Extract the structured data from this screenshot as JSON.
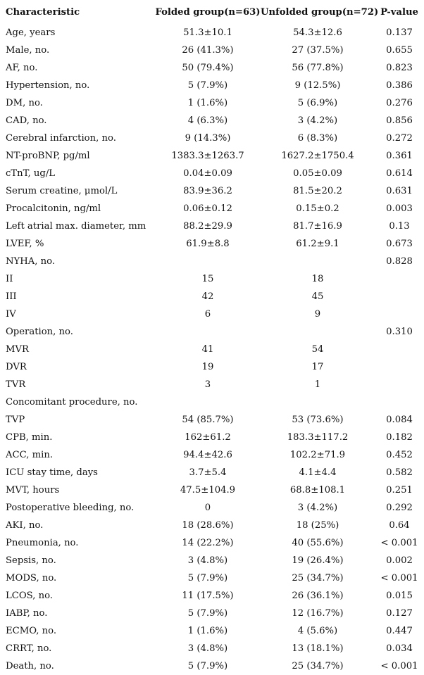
{
  "table": {
    "headers": [
      "Characteristic",
      "Folded group(n=63)",
      "Unfolded group(n=72)",
      "P-value"
    ],
    "rows": [
      [
        "Age, years",
        "51.3±10.1",
        "54.3±12.6",
        "0.137"
      ],
      [
        "Male, no.",
        "26 (41.3%)",
        "27 (37.5%)",
        "0.655"
      ],
      [
        "AF, no.",
        "50 (79.4%)",
        "56 (77.8%)",
        "0.823"
      ],
      [
        "Hypertension, no.",
        "5 (7.9%)",
        "9 (12.5%)",
        "0.386"
      ],
      [
        "DM, no.",
        "1 (1.6%)",
        "5 (6.9%)",
        "0.276"
      ],
      [
        "CAD, no.",
        "4 (6.3%)",
        "3 (4.2%)",
        "0.856"
      ],
      [
        "Cerebral infarction, no.",
        "9 (14.3%)",
        "6 (8.3%)",
        "0.272"
      ],
      [
        "NT-proBNP, pg/ml",
        "1383.3±1263.7",
        "1627.2±1750.4",
        "0.361"
      ],
      [
        "cTnT, ug/L",
        "0.04±0.09",
        "0.05±0.09",
        "0.614"
      ],
      [
        "Serum creatine, μmol/L",
        "83.9±36.2",
        "81.5±20.2",
        "0.631"
      ],
      [
        "Procalcitonin, ng/ml",
        "0.06±0.12",
        "0.15±0.2",
        "0.003"
      ],
      [
        "Left atrial max. diameter, mm",
        "88.2±29.9",
        "81.7±16.9",
        "0.13"
      ],
      [
        "LVEF, %",
        "61.9±8.8",
        "61.2±9.1",
        "0.673"
      ],
      [
        "NYHA, no.",
        "",
        "",
        "0.828"
      ],
      [
        "II",
        "15",
        "18",
        ""
      ],
      [
        "III",
        "42",
        "45",
        ""
      ],
      [
        "IV",
        "6",
        "9",
        ""
      ],
      [
        "Operation, no.",
        "",
        "",
        "0.310"
      ],
      [
        "MVR",
        "41",
        "54",
        ""
      ],
      [
        "DVR",
        "19",
        "17",
        ""
      ],
      [
        "TVR",
        "3",
        "1",
        ""
      ],
      [
        "Concomitant procedure, no.",
        "",
        "",
        ""
      ],
      [
        "TVP",
        "54 (85.7%)",
        "53 (73.6%)",
        "0.084"
      ],
      [
        "CPB, min.",
        "162±61.2",
        "183.3±117.2",
        "0.182"
      ],
      [
        "ACC, min.",
        "94.4±42.6",
        "102.2±71.9",
        "0.452"
      ],
      [
        "ICU stay time, days",
        "3.7±5.4",
        "4.1±4.4",
        "0.582"
      ],
      [
        "MVT, hours",
        "47.5±104.9",
        "68.8±108.1",
        "0.251"
      ],
      [
        "Postoperative bleeding, no.",
        "0",
        "3 (4.2%)",
        "0.292"
      ],
      [
        "AKI, no.",
        "18 (28.6%)",
        "18 (25%)",
        "0.64"
      ],
      [
        "Pneumonia, no.",
        "14 (22.2%)",
        "40 (55.6%)",
        "< 0.001"
      ],
      [
        "Sepsis, no.",
        "3 (4.8%)",
        "19 (26.4%)",
        "0.002"
      ],
      [
        "MODS, no.",
        "5 (7.9%)",
        "25 (34.7%)",
        "< 0.001"
      ],
      [
        "LCOS, no.",
        "11 (17.5%)",
        "26 (36.1%)",
        "0.015"
      ],
      [
        "IABP, no.",
        "5 (7.9%)",
        "12 (16.7%)",
        "0.127"
      ],
      [
        "ECMO, no.",
        "1 (1.6%)",
        "4 (5.6%)",
        "0.447"
      ],
      [
        "CRRT, no.",
        "3 (4.8%)",
        "13 (18.1%)",
        "0.034"
      ],
      [
        "Death, no.",
        "5 (7.9%)",
        "25 (34.7%)",
        "< 0.001"
      ]
    ]
  }
}
